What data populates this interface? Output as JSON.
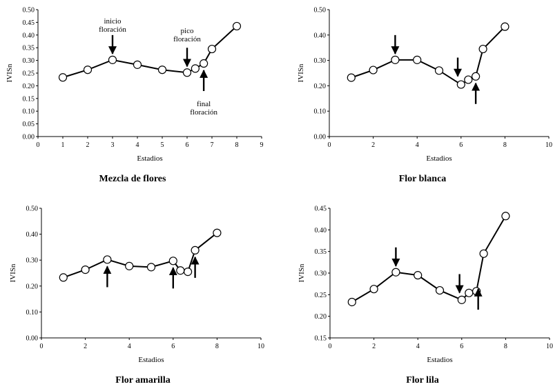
{
  "chart_data": [
    {
      "type": "line",
      "title": "Mezcla de flores",
      "xlabel": "Estadios",
      "ylabel": "IVISn",
      "xlim": [
        0,
        9
      ],
      "ylim": [
        0,
        0.5
      ],
      "xticks": [
        "0",
        "1",
        "2",
        "3",
        "4",
        "5",
        "6",
        "7",
        "8",
        "9"
      ],
      "yticks": [
        "0.00",
        "0.05",
        "0.10",
        "0.15",
        "0.20",
        "0.25",
        "0.30",
        "0.35",
        "0.40",
        "0.45",
        "0.50"
      ],
      "x": [
        1,
        2,
        3,
        4,
        5,
        6,
        6.33,
        6.67,
        7,
        8
      ],
      "y": [
        0.233,
        0.263,
        0.302,
        0.283,
        0.263,
        0.252,
        0.268,
        0.288,
        0.345,
        0.435
      ],
      "arrows": [
        {
          "x": 3,
          "dir": "down",
          "label": [
            "inicio",
            "floración"
          ]
        },
        {
          "x": 6,
          "dir": "down",
          "label": [
            "pico",
            "floración"
          ]
        },
        {
          "x": 6.67,
          "dir": "up",
          "label": [
            "final",
            "floración"
          ]
        }
      ]
    },
    {
      "type": "line",
      "title": "Flor blanca",
      "xlabel": "Estadios",
      "ylabel": "IVISn",
      "xlim": [
        0,
        10
      ],
      "ylim": [
        0,
        0.5
      ],
      "xticks": [
        "0",
        "2",
        "4",
        "6",
        "8",
        "10"
      ],
      "yticks": [
        "0.00",
        "0.10",
        "0.20",
        "0.30",
        "0.40",
        "0.50"
      ],
      "x": [
        1,
        2,
        3,
        4,
        5,
        6,
        6.33,
        6.67,
        7,
        8
      ],
      "y": [
        0.232,
        0.262,
        0.302,
        0.302,
        0.26,
        0.205,
        0.224,
        0.237,
        0.345,
        0.433
      ],
      "arrows": [
        {
          "x": 3,
          "dir": "down"
        },
        {
          "x": 5.85,
          "dir": "down"
        },
        {
          "x": 6.67,
          "dir": "up"
        }
      ]
    },
    {
      "type": "line",
      "title": "Flor amarilla",
      "xlabel": "Estadios",
      "ylabel": "IVISn",
      "xlim": [
        0,
        10
      ],
      "ylim": [
        0,
        0.5
      ],
      "xticks": [
        "0",
        "2",
        "4",
        "6",
        "8",
        "10"
      ],
      "yticks": [
        "0.00",
        "0.10",
        "0.20",
        "0.30",
        "0.40",
        "0.50"
      ],
      "x": [
        1,
        2,
        3,
        4,
        5,
        6,
        6.33,
        6.67,
        7,
        8
      ],
      "y": [
        0.233,
        0.263,
        0.302,
        0.277,
        0.273,
        0.297,
        0.26,
        0.255,
        0.338,
        0.405
      ],
      "arrows": [
        {
          "x": 3,
          "dir": "up"
        },
        {
          "x": 6,
          "dir": "up"
        },
        {
          "x": 7,
          "dir": "up"
        }
      ]
    },
    {
      "type": "line",
      "title": "Flor lila",
      "xlabel": "Estadios",
      "ylabel": "IVISn",
      "xlim": [
        0,
        10
      ],
      "ylim": [
        0.15,
        0.45
      ],
      "xticks": [
        "0",
        "2",
        "4",
        "6",
        "8",
        "10"
      ],
      "yticks": [
        "0.15",
        "0.20",
        "0.25",
        "0.30",
        "0.35",
        "0.40",
        "0.45"
      ],
      "x": [
        1,
        2,
        3,
        4,
        5,
        6,
        6.33,
        6.67,
        7,
        8
      ],
      "y": [
        0.233,
        0.263,
        0.302,
        0.295,
        0.26,
        0.238,
        0.254,
        0.258,
        0.345,
        0.432
      ],
      "arrows": [
        {
          "x": 3,
          "dir": "down"
        },
        {
          "x": 5.9,
          "dir": "down"
        },
        {
          "x": 6.75,
          "dir": "up"
        }
      ]
    }
  ]
}
